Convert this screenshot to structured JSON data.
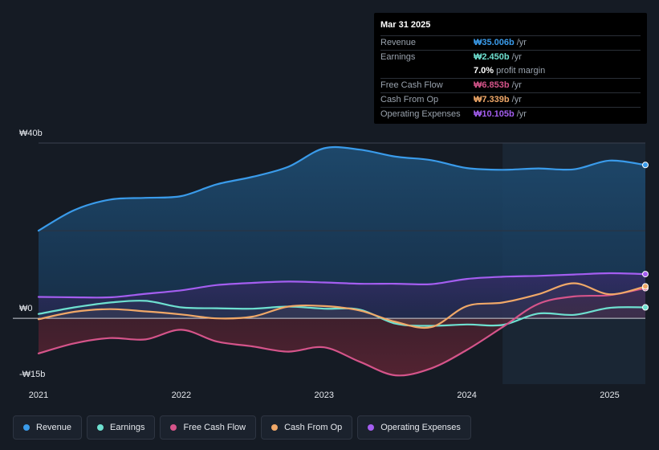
{
  "tooltip": {
    "date": "Mar 31 2025",
    "rows": [
      {
        "label": "Revenue",
        "value": "₩35.006b",
        "unit": "/yr",
        "color": "#3a9bea"
      },
      {
        "label": "Earnings",
        "value": "₩2.450b",
        "unit": "/yr",
        "color": "#6ee0d0"
      },
      {
        "label": "",
        "value": "7.0%",
        "unit": "profit margin",
        "color": "#ffffff"
      },
      {
        "label": "Free Cash Flow",
        "value": "₩6.853b",
        "unit": "/yr",
        "color": "#d5548a"
      },
      {
        "label": "Cash From Op",
        "value": "₩7.339b",
        "unit": "/yr",
        "color": "#f0a868"
      },
      {
        "label": "Operating Expenses",
        "value": "₩10.105b",
        "unit": "/yr",
        "color": "#a45ef0"
      }
    ]
  },
  "legend": [
    {
      "label": "Revenue",
      "color": "#3a9bea"
    },
    {
      "label": "Earnings",
      "color": "#6ee0d0"
    },
    {
      "label": "Free Cash Flow",
      "color": "#d5548a"
    },
    {
      "label": "Cash From Op",
      "color": "#f0a868"
    },
    {
      "label": "Operating Expenses",
      "color": "#a45ef0"
    }
  ],
  "chart_data": {
    "type": "area",
    "title": "",
    "xlabel": "",
    "ylabel": "",
    "y_tick_labels": {
      "top": "₩40b",
      "zero": "₩0",
      "bottom": "-₩15b"
    },
    "ylim": [
      -15,
      40
    ],
    "xlim": [
      2021.0,
      2025.25
    ],
    "x_ticks": [
      2021,
      2022,
      2023,
      2024,
      2025
    ],
    "x_tick_labels": [
      "2021",
      "2022",
      "2023",
      "2024",
      "2025"
    ],
    "highlight_from": 2024.25,
    "series": [
      {
        "name": "Revenue",
        "color": "#3a9bea",
        "x": [
          2021.0,
          2021.25,
          2021.5,
          2021.75,
          2022.0,
          2022.25,
          2022.5,
          2022.75,
          2023.0,
          2023.25,
          2023.5,
          2023.75,
          2024.0,
          2024.25,
          2024.5,
          2024.75,
          2025.0,
          2025.25
        ],
        "y": [
          20.0,
          24.7,
          27.1,
          27.5,
          27.9,
          30.6,
          32.3,
          34.6,
          38.8,
          38.5,
          36.9,
          36.1,
          34.3,
          33.9,
          34.2,
          34.0,
          36.0,
          35.0
        ]
      },
      {
        "name": "Earnings",
        "color": "#6ee0d0",
        "x": [
          2021.0,
          2021.25,
          2021.5,
          2021.75,
          2022.0,
          2022.25,
          2022.5,
          2022.75,
          2023.0,
          2023.25,
          2023.5,
          2023.75,
          2024.0,
          2024.25,
          2024.5,
          2024.75,
          2025.0,
          2025.25
        ],
        "y": [
          1.0,
          2.5,
          3.6,
          4.0,
          2.5,
          2.3,
          2.2,
          2.7,
          2.2,
          2.0,
          -1.2,
          -1.7,
          -1.4,
          -1.5,
          1.1,
          0.8,
          2.4,
          2.5
        ]
      },
      {
        "name": "Free Cash Flow",
        "color": "#d5548a",
        "x": [
          2021.0,
          2021.25,
          2021.5,
          2021.75,
          2022.0,
          2022.25,
          2022.5,
          2022.75,
          2023.0,
          2023.25,
          2023.5,
          2023.75,
          2024.0,
          2024.25,
          2024.5,
          2024.75,
          2025.0,
          2025.25
        ],
        "y": [
          -8.0,
          -5.7,
          -4.5,
          -4.8,
          -2.6,
          -5.3,
          -6.4,
          -7.6,
          -6.6,
          -9.9,
          -13.0,
          -11.4,
          -7.2,
          -2.0,
          3.3,
          5.0,
          5.3,
          6.9
        ]
      },
      {
        "name": "Cash From Op",
        "color": "#f0a868",
        "x": [
          2021.0,
          2021.25,
          2021.5,
          2021.75,
          2022.0,
          2022.25,
          2022.5,
          2022.75,
          2023.0,
          2023.25,
          2023.5,
          2023.75,
          2024.0,
          2024.25,
          2024.5,
          2024.75,
          2025.0,
          2025.25
        ],
        "y": [
          -0.2,
          1.5,
          2.1,
          1.6,
          0.9,
          0.0,
          0.4,
          2.7,
          2.8,
          1.8,
          -0.8,
          -2.0,
          2.8,
          3.6,
          5.5,
          8.0,
          5.5,
          7.3
        ]
      },
      {
        "name": "Operating Expenses",
        "color": "#a45ef0",
        "x": [
          2021.0,
          2021.25,
          2021.5,
          2021.75,
          2022.0,
          2022.25,
          2022.5,
          2022.75,
          2023.0,
          2023.25,
          2023.5,
          2023.75,
          2024.0,
          2024.25,
          2024.5,
          2024.75,
          2025.0,
          2025.25
        ],
        "y": [
          4.9,
          4.8,
          4.8,
          5.6,
          6.4,
          7.6,
          8.1,
          8.4,
          8.2,
          7.9,
          7.9,
          7.8,
          9.0,
          9.5,
          9.7,
          10.0,
          10.3,
          10.1
        ]
      }
    ]
  }
}
